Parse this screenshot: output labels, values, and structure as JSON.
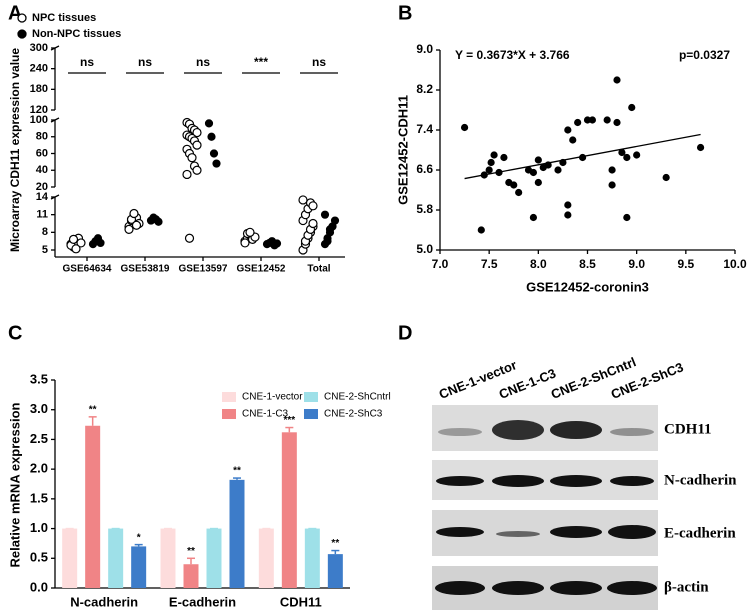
{
  "chart_data": [
    {
      "type": "dot",
      "panel": "A",
      "ylabel": "Microarray  CDH11 expression value",
      "categories": [
        "GSE64634",
        "GSE53819",
        "GSE13597",
        "GSE12452",
        "Total"
      ],
      "ysegments": [
        {
          "ylim": [
            5,
            14
          ],
          "yticks": [
            5,
            8,
            11,
            14
          ]
        },
        {
          "ylim": [
            20,
            100
          ],
          "yticks": [
            20,
            40,
            60,
            80,
            100
          ]
        },
        {
          "ylim": [
            120,
            300
          ],
          "yticks": [
            120,
            180,
            240,
            300
          ]
        }
      ],
      "annotations": [
        "ns",
        "ns",
        "ns",
        "***",
        "ns"
      ],
      "series": [
        {
          "name": "NPC tissues",
          "color": "#000000",
          "filled": false,
          "values": [
            [
              6.0,
              5.5,
              6.5,
              7.0,
              6.2,
              5.8,
              6.8,
              5.2
            ],
            [
              9.0,
              10.0,
              11.0,
              10.5,
              9.5,
              8.5,
              10.2,
              11.2,
              9.2
            ],
            [
              97,
              95,
              90,
              88,
              85,
              82,
              80,
              78,
              75,
              70,
              65,
              60,
              55,
              45,
              40,
              35,
              7
            ],
            [
              6.5,
              7.0,
              7.5,
              6.8,
              7.2,
              6.2,
              7.8,
              8.0
            ],
            [
              5.0,
              6.0,
              7.0,
              8.0,
              9.0,
              10.0,
              11.0,
              12.0,
              13.0,
              12.5,
              13.5,
              6.5,
              7.5,
              8.5,
              9.5
            ]
          ]
        },
        {
          "name": "Non-NPC tissues",
          "color": "#000000",
          "filled": true,
          "values": [
            [
              6.0,
              6.5,
              7.0,
              6.2
            ],
            [
              10.0,
              10.5,
              10.2,
              9.8
            ],
            [
              96,
              80,
              60,
              48
            ],
            [
              6.0,
              6.2,
              6.5,
              5.8,
              6.1
            ],
            [
              6.0,
              7.0,
              8.0,
              9.0,
              10.0,
              11.0,
              6.5,
              8.5
            ]
          ]
        }
      ]
    },
    {
      "type": "scatter",
      "panel": "B",
      "xlabel": "GSE12452-coronin3",
      "ylabel": "GSE12452-CDH11",
      "equation": "Y = 0.3673*X + 3.766",
      "pvalue": "p=0.0327",
      "trendline": {
        "slope": 0.3673,
        "intercept": 3.766
      },
      "xlim": [
        7,
        10
      ],
      "xticks": [
        {
          "value": 7,
          "label": "7.0"
        },
        {
          "value": 7.5,
          "label": "7.5"
        },
        {
          "value": 8,
          "label": "8.0"
        },
        {
          "value": 8.5,
          "label": "8.5"
        },
        {
          "value": 9,
          "label": "9.0"
        },
        {
          "value": 9.5,
          "label": "9.5"
        },
        {
          "value": 10,
          "label": "10.0"
        }
      ],
      "ylim": [
        5,
        9
      ],
      "yticks": [
        {
          "value": 5,
          "label": "5.0"
        },
        5.8,
        6.6,
        7.4,
        8.2,
        {
          "value": 9,
          "label": "9.0"
        }
      ],
      "color": "#000000",
      "x": [
        7.25,
        7.42,
        7.45,
        7.5,
        7.52,
        7.55,
        7.6,
        7.65,
        7.7,
        7.75,
        7.8,
        7.9,
        7.95,
        8.0,
        8.0,
        8.05,
        8.1,
        8.25,
        8.3,
        8.3,
        8.3,
        8.35,
        8.4,
        8.45,
        8.5,
        8.55,
        8.7,
        8.75,
        8.75,
        8.8,
        8.8,
        8.85,
        8.9,
        8.9,
        8.95,
        9.0,
        9.3,
        9.65,
        8.2,
        7.95
      ],
      "y": [
        7.45,
        5.4,
        6.5,
        6.6,
        6.75,
        6.9,
        6.55,
        6.85,
        6.35,
        6.3,
        6.15,
        6.6,
        5.65,
        6.8,
        6.35,
        6.65,
        6.7,
        6.75,
        7.4,
        5.9,
        5.7,
        7.2,
        7.55,
        6.85,
        7.6,
        7.6,
        7.6,
        6.3,
        6.6,
        8.4,
        7.55,
        6.95,
        5.65,
        6.85,
        7.85,
        6.9,
        6.45,
        7.05,
        6.6,
        6.55
      ]
    },
    {
      "type": "bar",
      "panel": "C",
      "ylabel": "Relative  mRNA expression",
      "categories": [
        "N-cadherin",
        "E-cadherin",
        "CDH11"
      ],
      "ylim": [
        0,
        3.5
      ],
      "yticks": [
        {
          "value": 0,
          "label": "0.0"
        },
        0.5,
        {
          "value": 1,
          "label": "1.0"
        },
        1.5,
        {
          "value": 2,
          "label": "2.0"
        },
        2.5,
        {
          "value": 3,
          "label": "3.0"
        },
        3.5
      ],
      "series": [
        {
          "name": "CNE-1-vector",
          "color": "#fddcdc",
          "values": [
            1,
            1,
            1
          ],
          "errors": [
            0,
            0,
            0
          ]
        },
        {
          "name": "CNE-1-C3",
          "color": "#f08486",
          "values": [
            2.73,
            0.4,
            2.62
          ],
          "errors": [
            0.15,
            0.1,
            0.08
          ],
          "annotations": [
            "**",
            "**",
            "***"
          ]
        },
        {
          "name": "CNE-2-ShCntrl",
          "color": "#9ee0e8",
          "values": [
            1,
            1,
            1
          ],
          "errors": [
            0,
            0,
            0
          ]
        },
        {
          "name": "CNE-2-ShC3",
          "color": "#3d7cc9",
          "values": [
            0.7,
            1.82,
            0.57
          ],
          "errors": [
            0.03,
            0.03,
            0.06
          ],
          "annotations": [
            "*",
            "**",
            "**"
          ]
        }
      ]
    }
  ],
  "blot": {
    "panel": "D",
    "columns": [
      "CNE-1-vector",
      "CNE-1-C3",
      "CNE-2-ShCntrl",
      "CNE-2-ShC3"
    ],
    "rows": [
      "CDH11",
      "N-cadherin",
      "E-cadherin",
      "β-actin"
    ]
  }
}
